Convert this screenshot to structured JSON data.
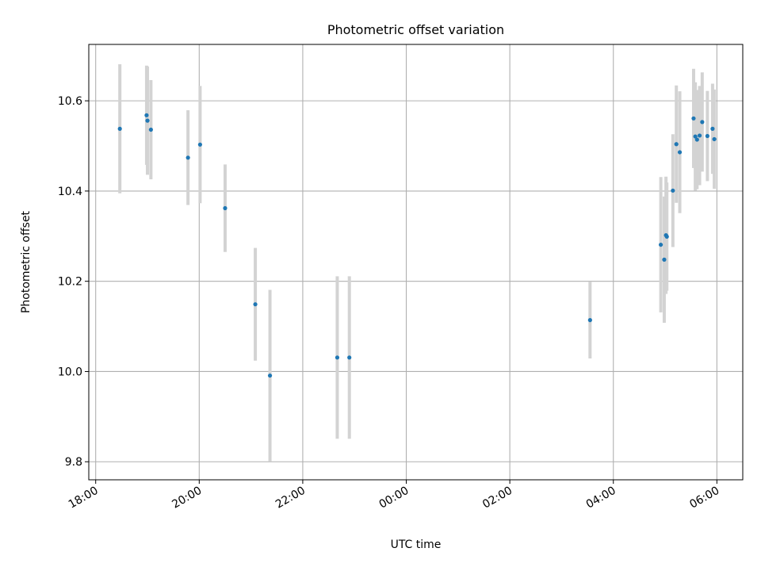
{
  "chart_data": {
    "type": "scatter",
    "title": "Photometric offset variation",
    "xlabel": "UTC time",
    "ylabel": "Photometric offset",
    "x_ticks": [
      "18:00",
      "20:00",
      "22:00",
      "00:00",
      "02:00",
      "04:00",
      "06:00"
    ],
    "y_ticks": [
      "9.8",
      "10.0",
      "10.2",
      "10.4",
      "10.6"
    ],
    "xlim": [
      "17:52",
      "06:30"
    ],
    "ylim": [
      9.76,
      10.725
    ],
    "grid": true,
    "colors": {
      "point": "#1f77b4",
      "errorbar": "#d3d3d3",
      "grid": "#b0b0b0"
    },
    "points": [
      {
        "x": "18:28",
        "y": 10.538,
        "yerr": 0.143
      },
      {
        "x": "18:59",
        "y": 10.568,
        "yerr": 0.11
      },
      {
        "x": "19:00",
        "y": 10.556,
        "yerr": 0.12
      },
      {
        "x": "19:04",
        "y": 10.536,
        "yerr": 0.11
      },
      {
        "x": "19:47",
        "y": 10.474,
        "yerr": 0.105
      },
      {
        "x": "20:01",
        "y": 10.503,
        "yerr": 0.13
      },
      {
        "x": "20:30",
        "y": 10.362,
        "yerr": 0.097
      },
      {
        "x": "21:05",
        "y": 10.149,
        "yerr": 0.125
      },
      {
        "x": "21:22",
        "y": 9.991,
        "yerr": 0.19
      },
      {
        "x": "22:40",
        "y": 10.031,
        "yerr": 0.18
      },
      {
        "x": "22:54",
        "y": 10.031,
        "yerr": 0.18
      },
      {
        "x": "03:33",
        "y": 10.114,
        "yerr": 0.085
      },
      {
        "x": "04:55",
        "y": 10.281,
        "yerr": 0.15
      },
      {
        "x": "04:59",
        "y": 10.248,
        "yerr": 0.14
      },
      {
        "x": "05:01",
        "y": 10.302,
        "yerr": 0.13
      },
      {
        "x": "05:02",
        "y": 10.299,
        "yerr": 0.12
      },
      {
        "x": "05:09",
        "y": 10.401,
        "yerr": 0.125
      },
      {
        "x": "05:13",
        "y": 10.504,
        "yerr": 0.13
      },
      {
        "x": "05:17",
        "y": 10.486,
        "yerr": 0.135
      },
      {
        "x": "05:33",
        "y": 10.561,
        "yerr": 0.11
      },
      {
        "x": "05:35",
        "y": 10.521,
        "yerr": 0.12
      },
      {
        "x": "05:37",
        "y": 10.514,
        "yerr": 0.11
      },
      {
        "x": "05:40",
        "y": 10.523,
        "yerr": 0.11
      },
      {
        "x": "05:43",
        "y": 10.553,
        "yerr": 0.11
      },
      {
        "x": "05:49",
        "y": 10.522,
        "yerr": 0.1
      },
      {
        "x": "05:55",
        "y": 10.538,
        "yerr": 0.1
      },
      {
        "x": "05:57",
        "y": 10.515,
        "yerr": 0.11
      }
    ]
  }
}
